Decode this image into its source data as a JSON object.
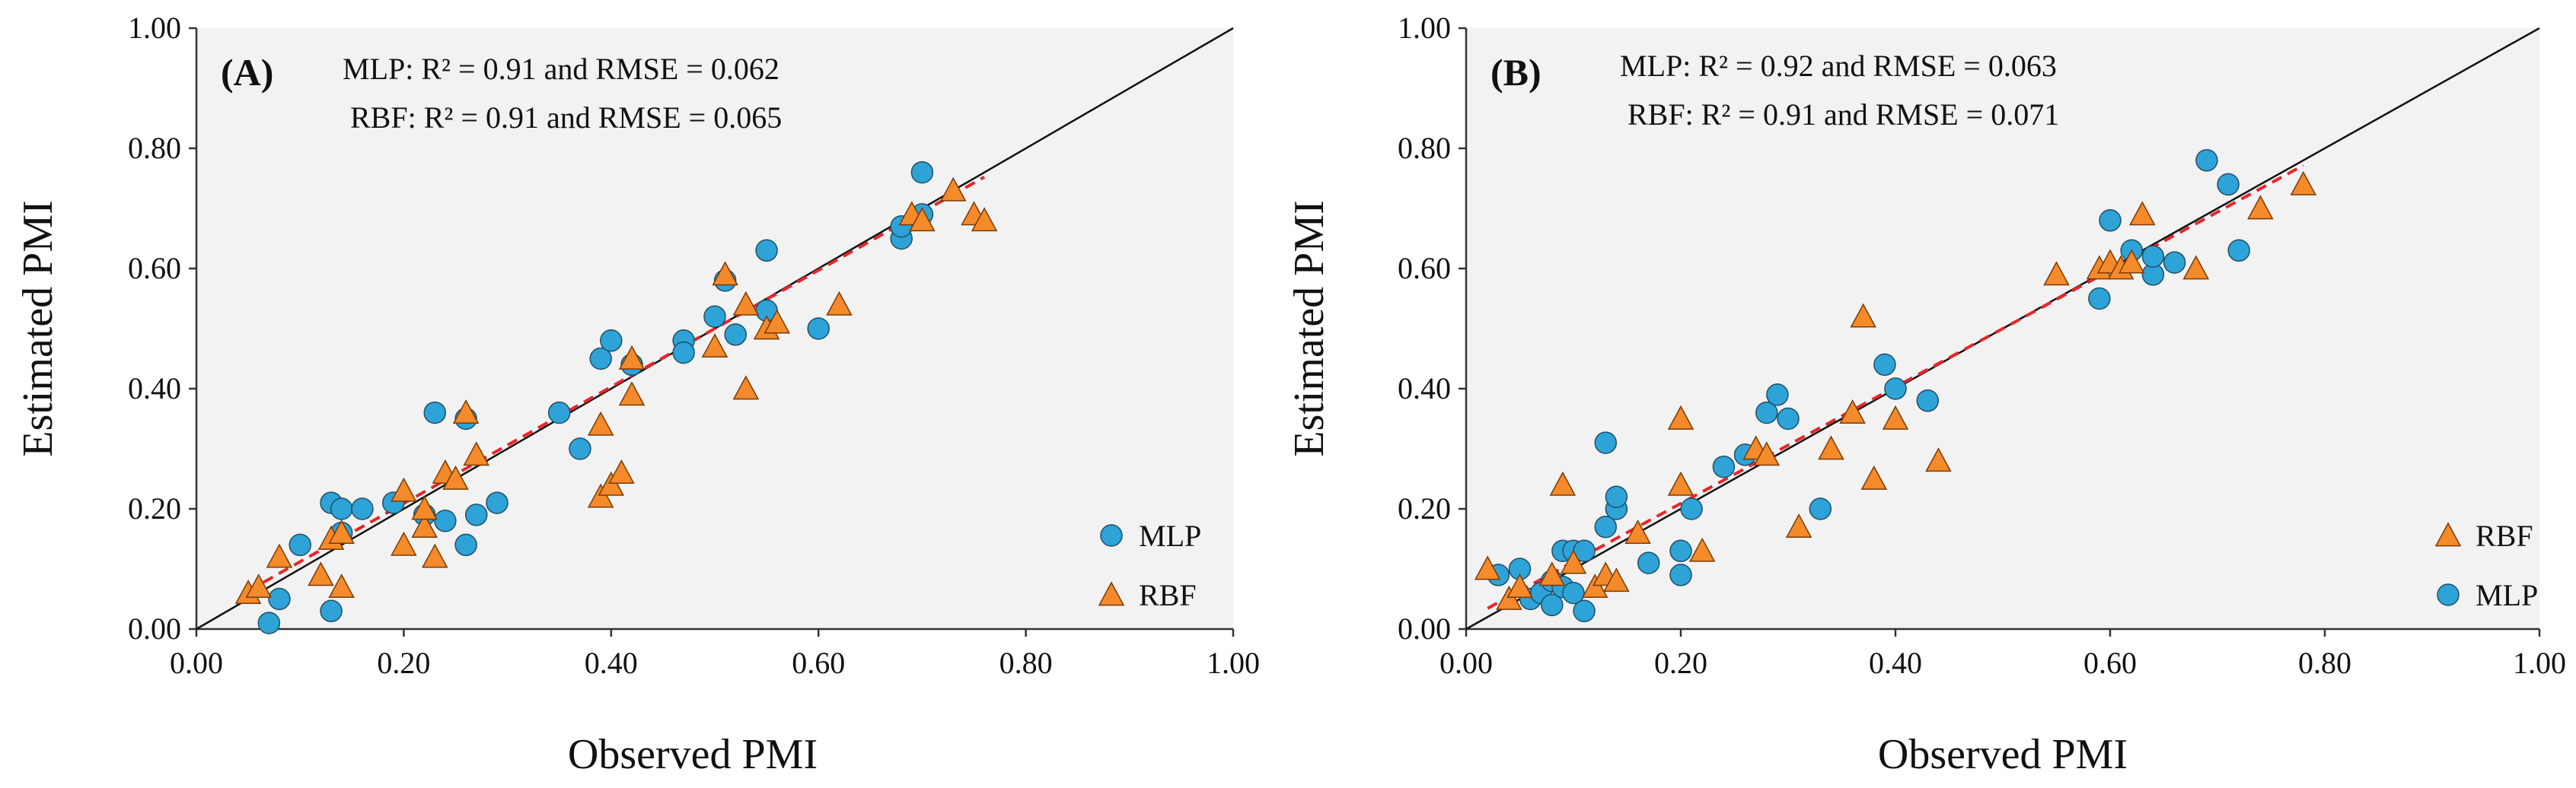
{
  "chart_data": [
    {
      "type": "scatter",
      "panel_label": "(A)",
      "xlabel": "Observed PMI",
      "ylabel": "Estimated PMI",
      "xlim": [
        0,
        1
      ],
      "ylim": [
        0,
        1
      ],
      "x_tick_labels": [
        "0.00",
        "0.20",
        "0.40",
        "0.60",
        "0.80",
        "1.00"
      ],
      "y_tick_labels": [
        "0.00",
        "0.20",
        "0.40",
        "0.60",
        "0.80",
        "1.00"
      ],
      "annotations": [
        "MLP: R² = 0.91 and RMSE = 0.062",
        "RBF: R² = 0.91 and RMSE = 0.065"
      ],
      "legend_position": "bottom-right",
      "legend_order": [
        "MLP",
        "RBF"
      ],
      "reference_line": "1:1",
      "trend_line": {
        "slope": 0.97,
        "intercept": 0.015
      },
      "background": "#f2f2f2",
      "series": [
        {
          "name": "MLP",
          "marker": "circle",
          "color": "#2ea3d8",
          "x": [
            0.07,
            0.08,
            0.1,
            0.13,
            0.13,
            0.14,
            0.14,
            0.16,
            0.19,
            0.22,
            0.23,
            0.24,
            0.26,
            0.26,
            0.27,
            0.29,
            0.35,
            0.37,
            0.39,
            0.4,
            0.42,
            0.47,
            0.47,
            0.5,
            0.51,
            0.52,
            0.55,
            0.55,
            0.6,
            0.68,
            0.68,
            0.7,
            0.7
          ],
          "y": [
            0.01,
            0.05,
            0.14,
            0.03,
            0.21,
            0.2,
            0.16,
            0.2,
            0.21,
            0.19,
            0.36,
            0.18,
            0.35,
            0.14,
            0.19,
            0.21,
            0.36,
            0.3,
            0.45,
            0.48,
            0.44,
            0.48,
            0.46,
            0.52,
            0.58,
            0.49,
            0.63,
            0.53,
            0.5,
            0.65,
            0.67,
            0.76,
            0.69
          ]
        },
        {
          "name": "RBF",
          "marker": "triangle",
          "color": "#f58a2b",
          "x": [
            0.05,
            0.06,
            0.08,
            0.12,
            0.13,
            0.14,
            0.14,
            0.2,
            0.2,
            0.22,
            0.22,
            0.23,
            0.24,
            0.25,
            0.26,
            0.27,
            0.39,
            0.39,
            0.4,
            0.41,
            0.42,
            0.42,
            0.5,
            0.51,
            0.53,
            0.53,
            0.55,
            0.56,
            0.62,
            0.69,
            0.7,
            0.73,
            0.75,
            0.76
          ],
          "y": [
            0.06,
            0.07,
            0.12,
            0.09,
            0.15,
            0.07,
            0.16,
            0.23,
            0.14,
            0.17,
            0.2,
            0.12,
            0.26,
            0.25,
            0.36,
            0.29,
            0.22,
            0.34,
            0.24,
            0.26,
            0.45,
            0.39,
            0.47,
            0.59,
            0.54,
            0.4,
            0.5,
            0.51,
            0.54,
            0.69,
            0.68,
            0.73,
            0.69,
            0.68
          ]
        }
      ]
    },
    {
      "type": "scatter",
      "panel_label": "(B)",
      "xlabel": "Observed PMI",
      "ylabel": "Estimated PMI",
      "xlim": [
        0,
        1
      ],
      "ylim": [
        0,
        1
      ],
      "x_tick_labels": [
        "0.00",
        "0.20",
        "0.40",
        "0.60",
        "0.80",
        "1.00"
      ],
      "y_tick_labels": [
        "0.00",
        "0.20",
        "0.40",
        "0.60",
        "0.80",
        "1.00"
      ],
      "annotations": [
        "MLP: R² = 0.92 and RMSE = 0.063",
        "RBF: R² = 0.91 and RMSE = 0.071"
      ],
      "legend_position": "bottom-right",
      "legend_order": [
        "RBF",
        "MLP"
      ],
      "reference_line": "1:1",
      "trend_line": {
        "slope": 0.97,
        "intercept": 0.015
      },
      "background": "#f2f2f2",
      "series": [
        {
          "name": "MLP",
          "marker": "circle",
          "color": "#2ea3d8",
          "x": [
            0.03,
            0.05,
            0.06,
            0.07,
            0.08,
            0.08,
            0.09,
            0.09,
            0.1,
            0.1,
            0.11,
            0.11,
            0.13,
            0.13,
            0.14,
            0.14,
            0.17,
            0.2,
            0.2,
            0.21,
            0.24,
            0.26,
            0.28,
            0.29,
            0.3,
            0.33,
            0.39,
            0.4,
            0.43,
            0.59,
            0.6,
            0.62,
            0.64,
            0.64,
            0.66,
            0.69,
            0.71,
            0.72
          ],
          "y": [
            0.09,
            0.1,
            0.05,
            0.06,
            0.08,
            0.04,
            0.13,
            0.07,
            0.06,
            0.13,
            0.03,
            0.13,
            0.31,
            0.17,
            0.2,
            0.22,
            0.11,
            0.09,
            0.13,
            0.2,
            0.27,
            0.29,
            0.36,
            0.39,
            0.35,
            0.2,
            0.44,
            0.4,
            0.38,
            0.55,
            0.68,
            0.63,
            0.59,
            0.62,
            0.61,
            0.78,
            0.74,
            0.63
          ]
        },
        {
          "name": "RBF",
          "marker": "triangle",
          "color": "#f58a2b",
          "x": [
            0.02,
            0.04,
            0.05,
            0.08,
            0.09,
            0.1,
            0.12,
            0.13,
            0.14,
            0.16,
            0.2,
            0.2,
            0.22,
            0.27,
            0.28,
            0.31,
            0.34,
            0.36,
            0.37,
            0.38,
            0.4,
            0.44,
            0.55,
            0.59,
            0.6,
            0.61,
            0.62,
            0.63,
            0.68,
            0.74,
            0.78
          ],
          "y": [
            0.1,
            0.05,
            0.07,
            0.09,
            0.24,
            0.11,
            0.07,
            0.09,
            0.08,
            0.16,
            0.35,
            0.24,
            0.13,
            0.3,
            0.29,
            0.17,
            0.3,
            0.36,
            0.52,
            0.25,
            0.35,
            0.28,
            0.59,
            0.6,
            0.61,
            0.6,
            0.61,
            0.69,
            0.6,
            0.7,
            0.74
          ]
        }
      ]
    }
  ]
}
